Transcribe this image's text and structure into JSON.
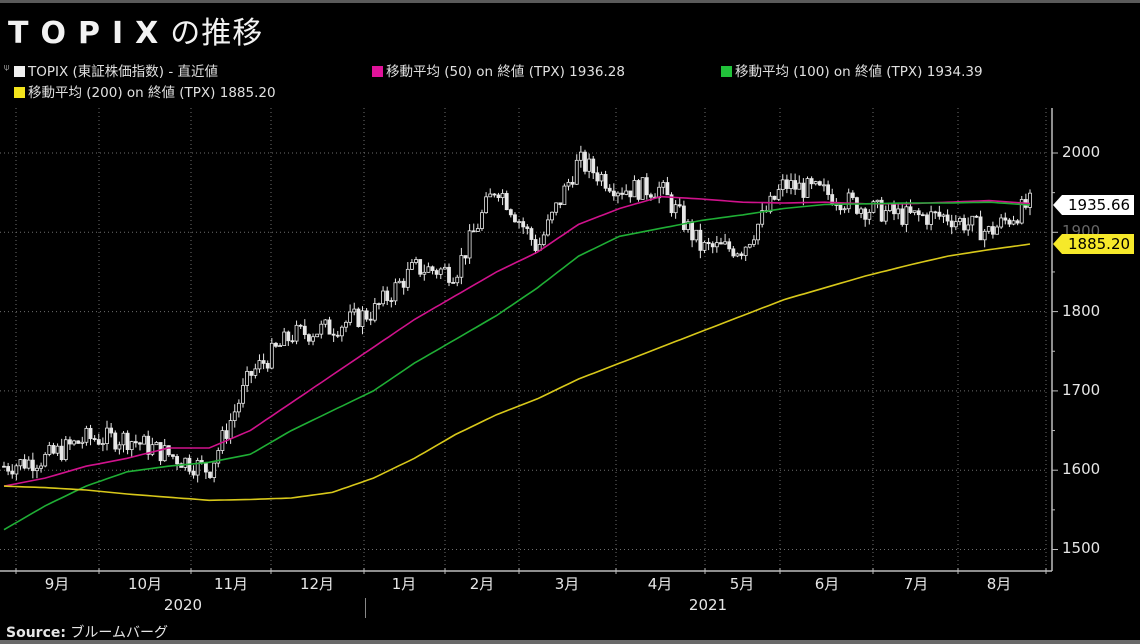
{
  "title": {
    "latin": "TOPIX",
    "jp": "の推移"
  },
  "legend": [
    {
      "label": "TOPIX (東証株価指数) - 直近値",
      "color": "#f0f0f0"
    },
    {
      "label": "移動平均 (50) on 終値 (TPX) 1936.28",
      "color": "#e0139a"
    },
    {
      "label": "移動平均 (100) on 終値 (TPX) 1934.39",
      "color": "#21c23a"
    },
    {
      "label": "移動平均 (200) on 終値 (TPX) 1885.20",
      "color": "#f3e41c"
    }
  ],
  "y_axis": {
    "ticks": [
      "2000",
      "1900",
      "1800",
      "1700",
      "1600",
      "1500"
    ]
  },
  "x_axis": {
    "months": [
      "9月",
      "10月",
      "11月",
      "12月",
      "1月",
      "2月",
      "3月",
      "4月",
      "5月",
      "6月",
      "7月",
      "8月"
    ],
    "years": [
      "2020",
      "2021"
    ]
  },
  "tags": {
    "last": "1935.66",
    "ma200": "1885.20"
  },
  "source": {
    "label": "Source:",
    "value": "ブルームバーグ"
  },
  "colors": {
    "background": "#000000",
    "price": "#e8e8e8",
    "ma50": "#d0128c",
    "ma100": "#1fae35",
    "ma200": "#d8c81a",
    "grid": "#6e6e6e"
  },
  "chart_data": {
    "type": "line",
    "title": "TOPIXの推移",
    "xlabel": "",
    "ylabel": "",
    "ylim": [
      1480,
      2060
    ],
    "legend_position": "top-left",
    "grid": true,
    "x": [
      "2020-08-24",
      "2020-09-01",
      "2020-09-15",
      "2020-10-01",
      "2020-10-15",
      "2020-11-02",
      "2020-11-16",
      "2020-12-01",
      "2020-12-15",
      "2021-01-04",
      "2021-01-18",
      "2021-02-01",
      "2021-02-16",
      "2021-03-01",
      "2021-03-15",
      "2021-04-01",
      "2021-04-15",
      "2021-05-06",
      "2021-05-17",
      "2021-06-01",
      "2021-06-15",
      "2021-07-01",
      "2021-07-15",
      "2021-08-02",
      "2021-08-16",
      "2021-08-27"
    ],
    "series": [
      {
        "name": "TOPIX (東証株価指数) - 直近値",
        "values": [
          1605,
          1615,
          1640,
          1640,
          1620,
          1600,
          1720,
          1770,
          1780,
          1800,
          1855,
          1850,
          1960,
          1880,
          1990,
          1955,
          1955,
          1880,
          1880,
          1960,
          1950,
          1930,
          1920,
          1920,
          1900,
          1935.66
        ]
      },
      {
        "name": "移動平均 (50) on 終値 (TPX)",
        "values": [
          1580,
          1590,
          1605,
          1615,
          1628,
          1628,
          1650,
          1685,
          1720,
          1755,
          1790,
          1820,
          1850,
          1875,
          1910,
          1930,
          1945,
          1942,
          1938,
          1937,
          1938,
          1936,
          1936,
          1938,
          1940,
          1936.28
        ]
      },
      {
        "name": "移動平均 (100) on 終値 (TPX)",
        "values": [
          1525,
          1555,
          1580,
          1598,
          1605,
          1610,
          1620,
          1650,
          1675,
          1700,
          1735,
          1765,
          1795,
          1830,
          1870,
          1895,
          1905,
          1915,
          1922,
          1930,
          1935,
          1936,
          1937,
          1937,
          1938,
          1934.39
        ]
      },
      {
        "name": "移動平均 (200) on 終値 (TPX)",
        "values": [
          1580,
          1578,
          1575,
          1570,
          1566,
          1562,
          1563,
          1565,
          1572,
          1590,
          1615,
          1645,
          1670,
          1690,
          1715,
          1735,
          1755,
          1775,
          1795,
          1815,
          1830,
          1845,
          1858,
          1870,
          1878,
          1885.2
        ]
      }
    ]
  }
}
